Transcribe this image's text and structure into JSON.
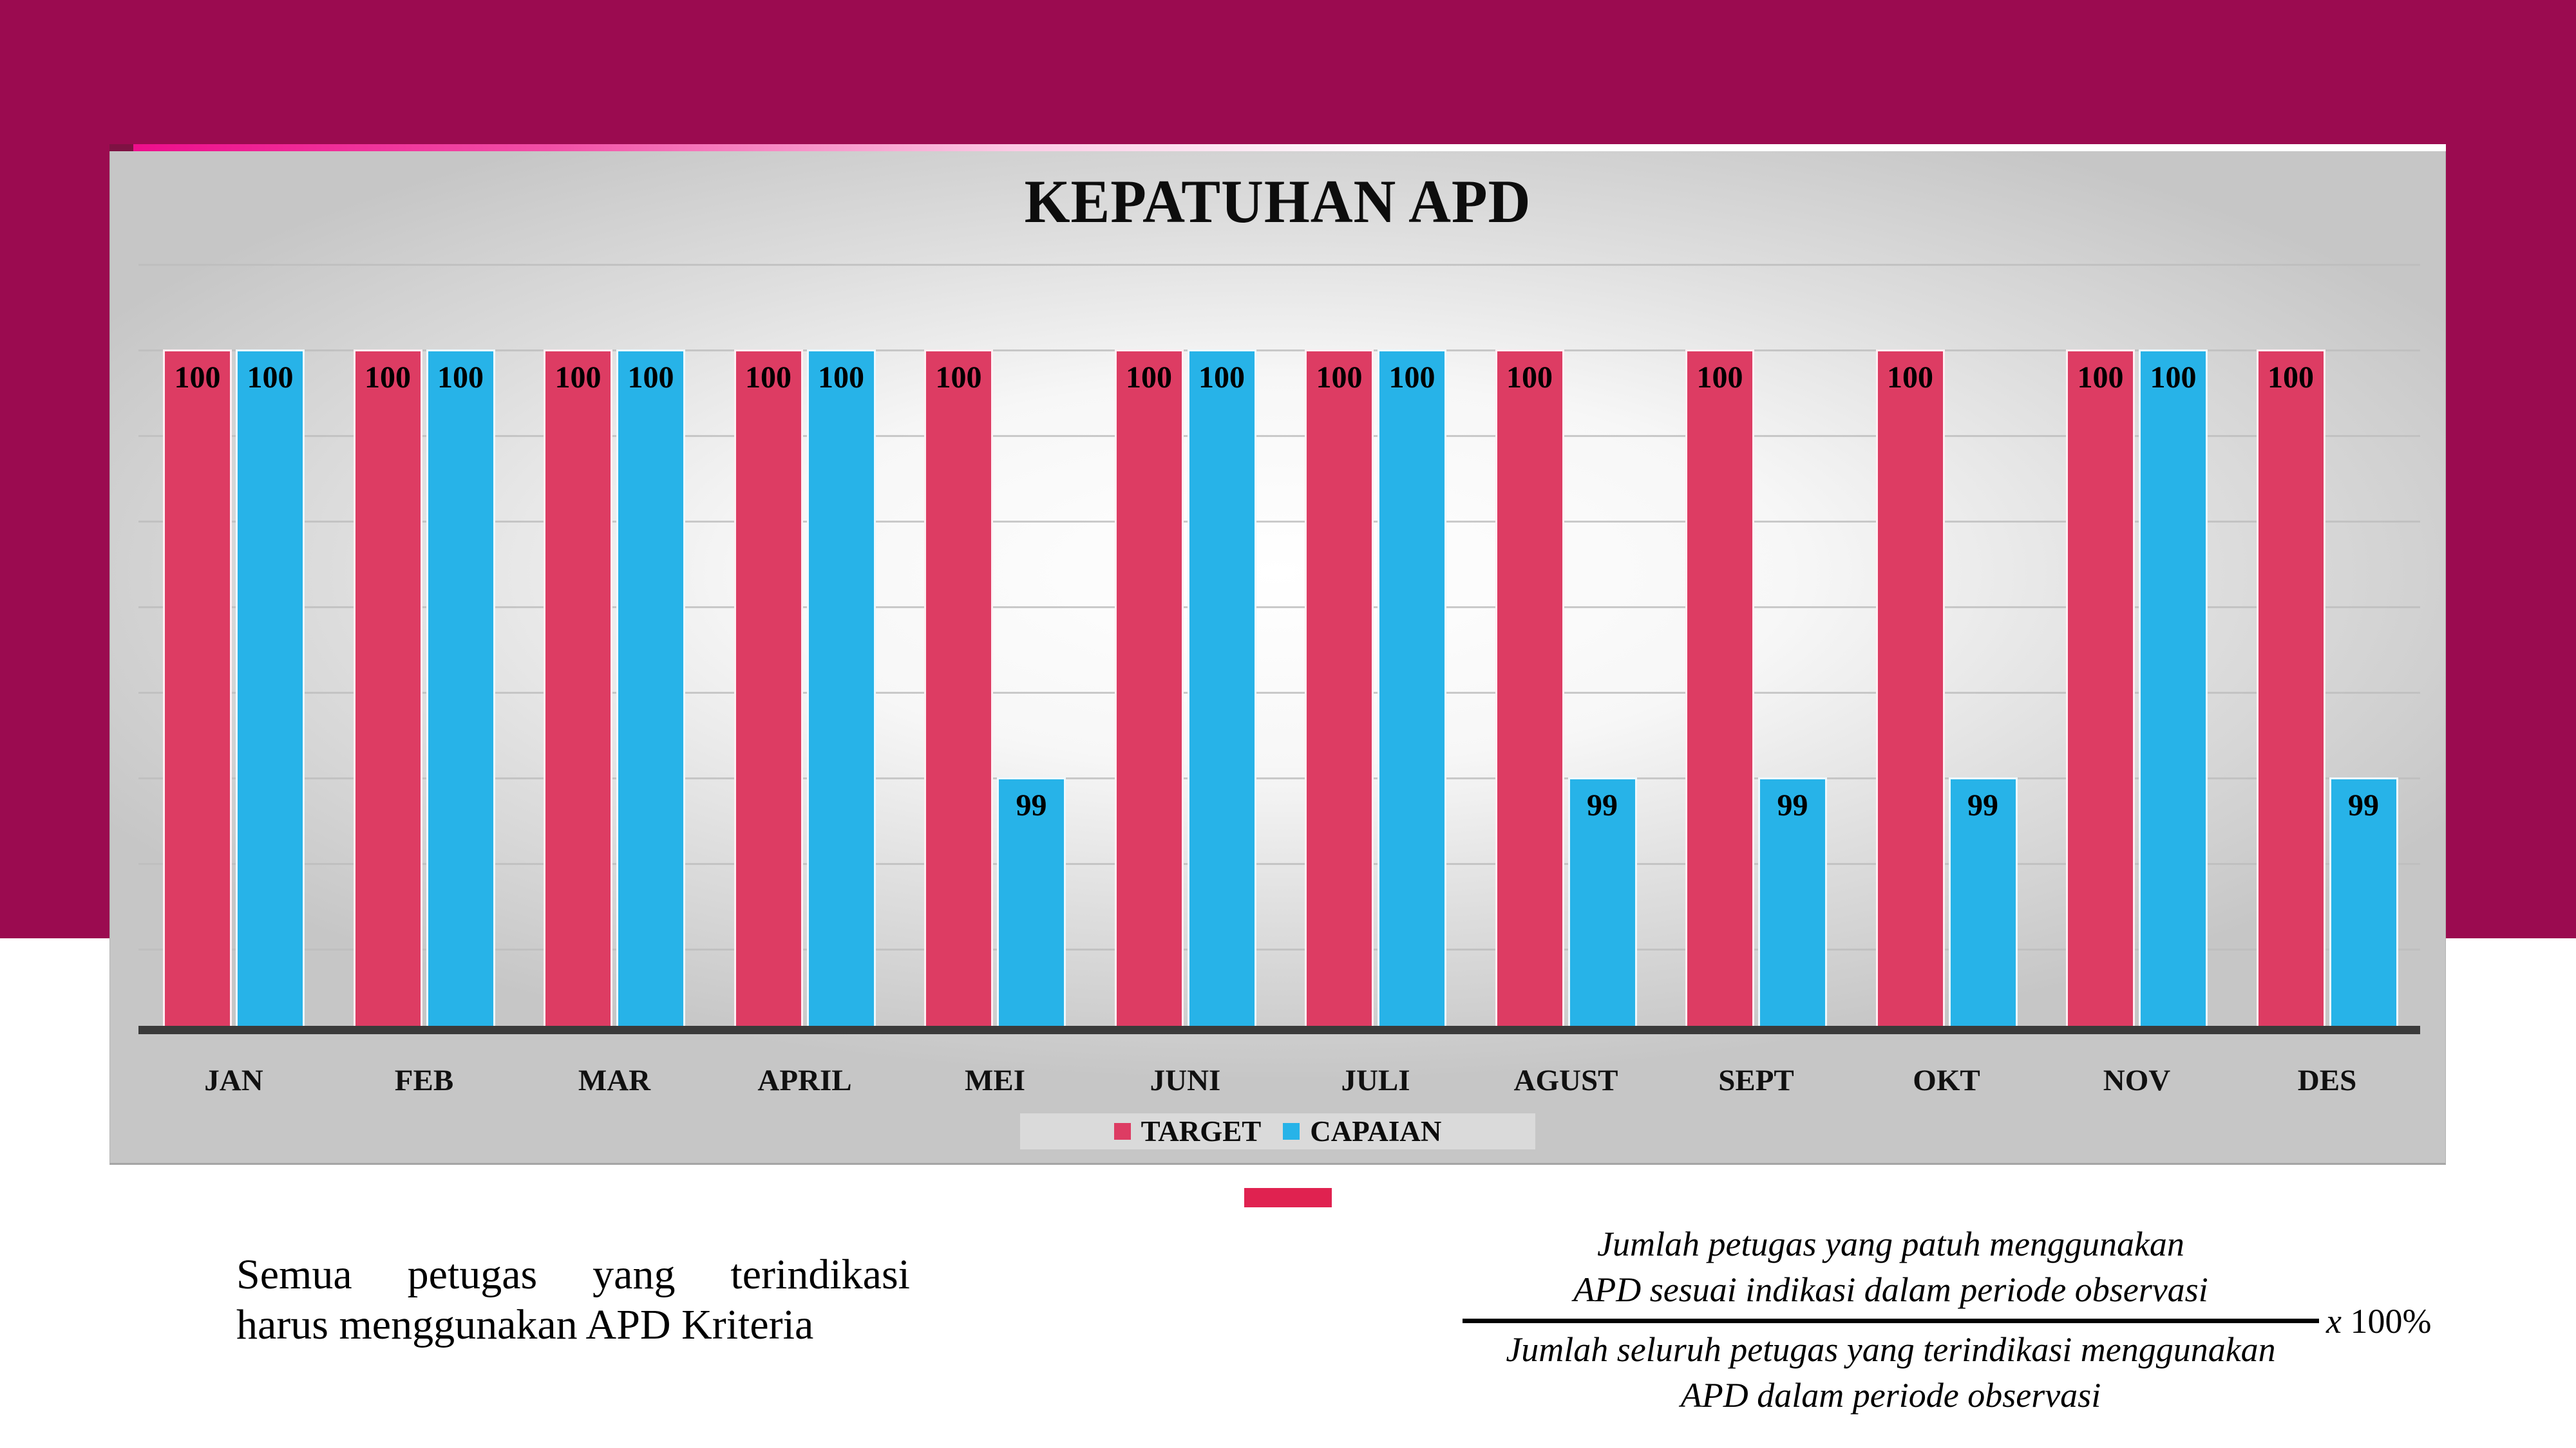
{
  "chart_data": {
    "type": "bar",
    "title": "KEPATUHAN APD",
    "categories": [
      "JAN",
      "FEB",
      "MAR",
      "APRIL",
      "MEI",
      "JUNI",
      "JULI",
      "AGUST",
      "SEPT",
      "OKT",
      "NOV",
      "DES"
    ],
    "series": [
      {
        "name": "TARGET",
        "color": "#DD3C63",
        "values": [
          100,
          100,
          100,
          100,
          100,
          100,
          100,
          100,
          100,
          100,
          100,
          100
        ]
      },
      {
        "name": "CAPAIAN",
        "color": "#27B3E8",
        "values": [
          100,
          100,
          100,
          100,
          99,
          100,
          100,
          99,
          99,
          99,
          100,
          99
        ]
      }
    ],
    "data_labels": true,
    "legend_position": "bottom-center",
    "grid": true,
    "value_axis": {
      "tick_labels_visible": false,
      "min": 98.4,
      "max": 100.2,
      "grid_step": 0.2
    }
  },
  "legend": {
    "target_label": "TARGET",
    "capaian_label": "CAPAIAN"
  },
  "note": {
    "line1": "Semua petugas yang terindikasi",
    "line2": "harus menggunakan APD Kriteria"
  },
  "formula": {
    "numerator_line1": "Jumlah petugas yang patuh menggunakan",
    "numerator_line2": "APD sesuai indikasi dalam periode observasi",
    "denominator_line1": "Jumlah seluruh petugas yang terindikasi menggunakan",
    "denominator_line2": "APD dalam periode observasi",
    "multiplier_x": "x",
    "multiplier_value": "100%"
  },
  "colors": {
    "top_background": "#9B0B50",
    "bar_target": "#DD3C63",
    "bar_capaian": "#27B3E8",
    "accent_strip": "#EE0E8C",
    "accent_strip_cap": "#7E1243",
    "accent_rect": "#E02250",
    "axis_line": "#3A3A3A",
    "gridline": "#BDBDBD",
    "title_text": "#0D0D0D"
  }
}
